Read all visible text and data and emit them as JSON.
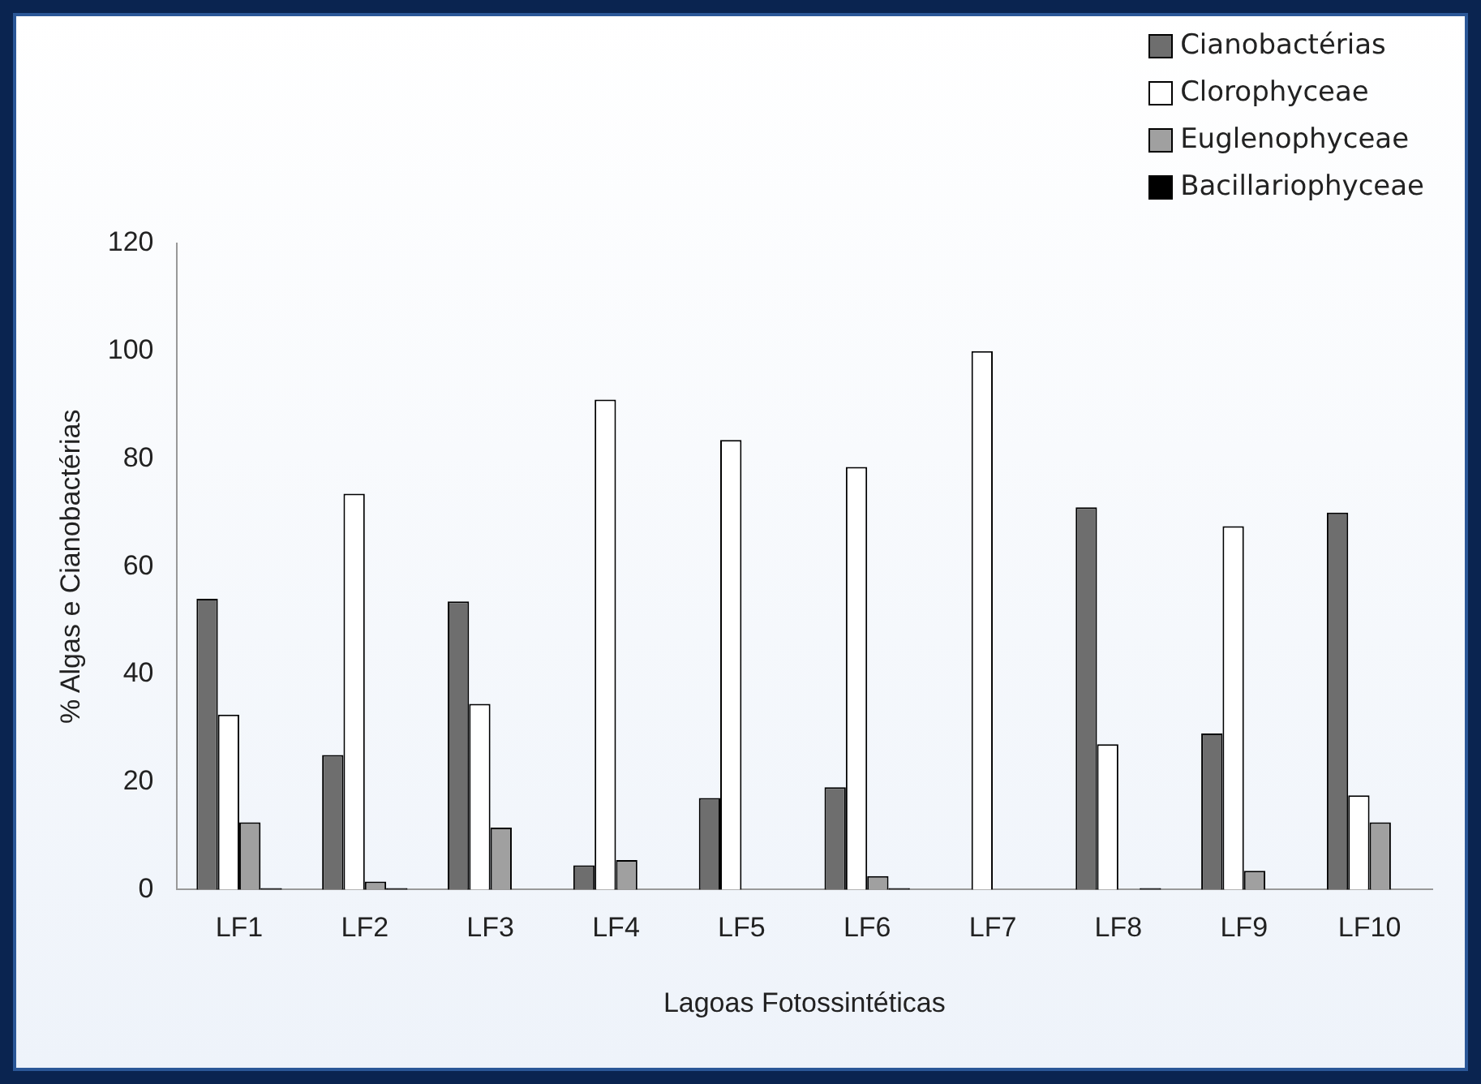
{
  "chart_data": {
    "type": "bar",
    "xlabel": "Lagoas Fotossintéticas",
    "ylabel": "% Algas e Cianobactérias",
    "categories": [
      "LF1",
      "LF2",
      "LF3",
      "LF4",
      "LF5",
      "LF6",
      "LF7",
      "LF8",
      "LF9",
      "LF10"
    ],
    "series": [
      {
        "name": "Cianobactérias",
        "color": "#6e6e6e",
        "values": [
          54,
          25,
          53.5,
          4.5,
          17,
          19,
          0,
          71,
          29,
          70
        ]
      },
      {
        "name": "Clorophyceae",
        "color": "#ffffff",
        "values": [
          32.5,
          73.5,
          34.5,
          91,
          83.5,
          78.5,
          100,
          27,
          67.5,
          17.5
        ]
      },
      {
        "name": "Euglenophyceae",
        "color": "#a0a0a0",
        "values": [
          12.5,
          1.5,
          11.5,
          5.5,
          0,
          2.5,
          0,
          0,
          3.5,
          12.5
        ]
      },
      {
        "name": "Bacillariophyceae",
        "color": "#000000",
        "values": [
          0.3,
          0.3,
          0,
          0,
          0,
          0.3,
          0,
          0.3,
          0,
          0
        ]
      }
    ],
    "ylim": [
      0,
      120
    ],
    "yticks": [
      0,
      20,
      40,
      60,
      80,
      100,
      120
    ],
    "grid": false,
    "legend": "top right"
  }
}
